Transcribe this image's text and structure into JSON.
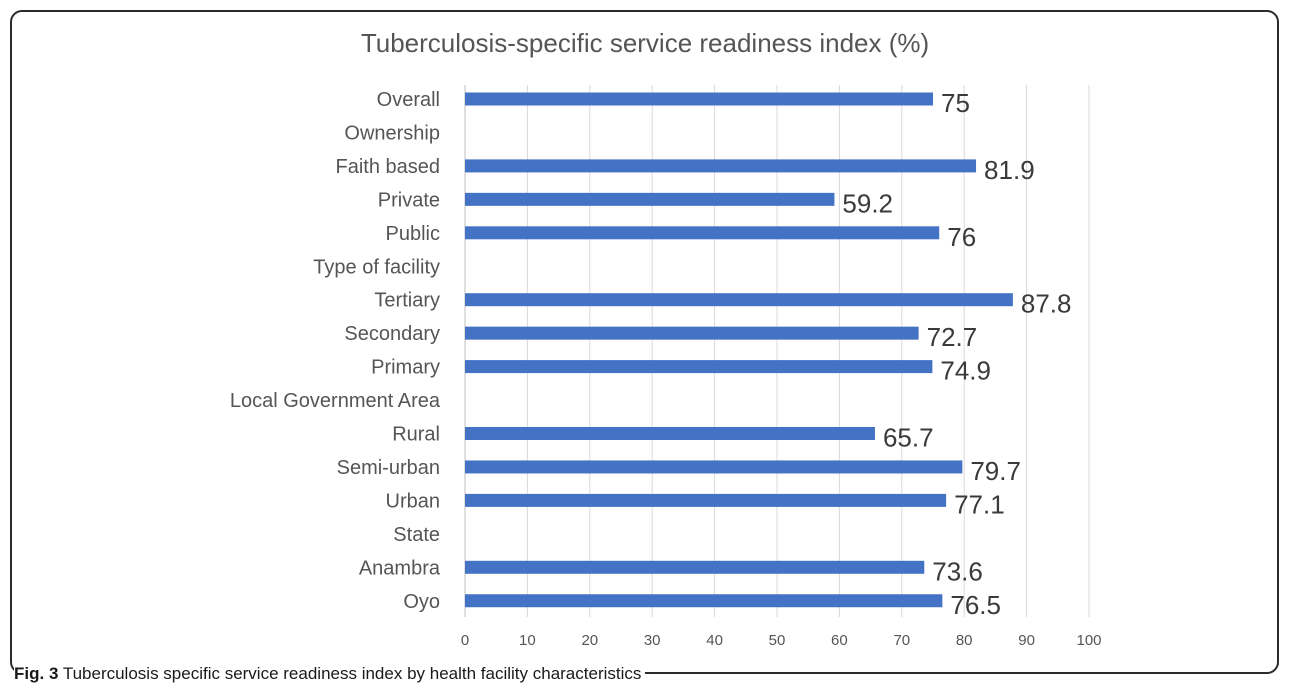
{
  "chart_data": {
    "type": "bar",
    "orientation": "horizontal",
    "title": "Tuberculosis-specific service readiness index (%)",
    "xlabel": "",
    "ylabel": "",
    "xlim": [
      0,
      100
    ],
    "x_ticks": [
      0,
      10,
      20,
      30,
      40,
      50,
      60,
      70,
      80,
      90,
      100
    ],
    "grid": "vertical",
    "legend": "none",
    "bar_color": "#4472C4",
    "categories": [
      "Overall",
      "Ownership",
      "Faith based",
      "Private",
      "Public",
      "Type of facility",
      "Tertiary",
      "Secondary",
      "Primary",
      "Local Government Area",
      "Rural",
      "Semi-urban",
      "Urban",
      "State",
      "Anambra",
      "Oyo"
    ],
    "values": [
      75,
      null,
      81.9,
      59.2,
      76,
      null,
      87.8,
      72.7,
      74.9,
      null,
      65.7,
      79.7,
      77.1,
      null,
      73.6,
      76.5
    ],
    "data_labels": [
      "75",
      "",
      "81.9",
      "59.2",
      "76",
      "",
      "87.8",
      "72.7",
      "74.9",
      "",
      "65.7",
      "79.7",
      "77.1",
      "",
      "73.6",
      "76.5"
    ]
  },
  "caption": {
    "prefix": "Fig. 3",
    "text": " Tuberculosis specific service readiness index by health facility characteristics"
  }
}
